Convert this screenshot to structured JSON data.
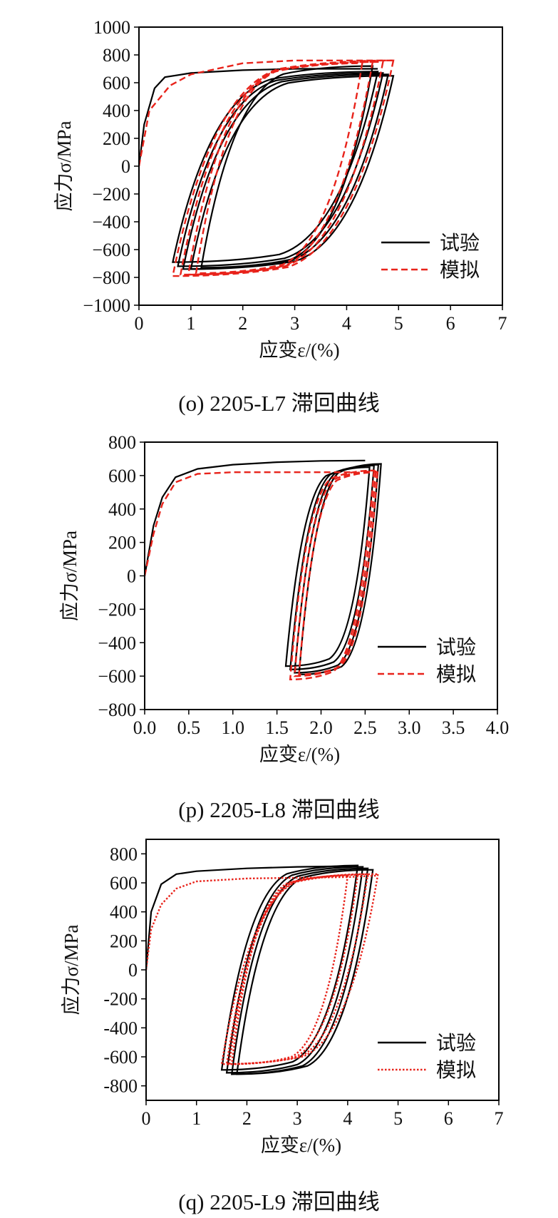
{
  "chart_data": [
    {
      "id": "o",
      "type": "line",
      "caption": "(o) 2205-L7 滞回曲线",
      "xlabel": "应变ε/(%)",
      "ylabel": "应力σ/MPa",
      "xlim": [
        0,
        7
      ],
      "ylim": [
        -1000,
        1000
      ],
      "x_ticks": [
        "0",
        "1",
        "2",
        "3",
        "4",
        "5",
        "6",
        "7"
      ],
      "y_ticks": [
        "1000",
        "800",
        "600",
        "400",
        "200",
        "0",
        "−200",
        "−400",
        "−600",
        "−800",
        "−1000"
      ],
      "x_tick_values": [
        0,
        1,
        2,
        3,
        4,
        5,
        6,
        7
      ],
      "y_tick_values": [
        1000,
        800,
        600,
        400,
        200,
        0,
        -200,
        -400,
        -600,
        -800,
        -1000
      ],
      "grid": false,
      "legend_position": "bottom-right",
      "series": [
        {
          "name": "试验",
          "color": "#000000",
          "style": "solid",
          "initial_loading": [
            [
              0,
              0
            ],
            [
              0.1,
              300
            ],
            [
              0.3,
              560
            ],
            [
              0.5,
              640
            ],
            [
              1.0,
              670
            ],
            [
              2.0,
              690
            ],
            [
              3.0,
              700
            ],
            [
              4.0,
              700
            ],
            [
              4.6,
              700
            ]
          ],
          "loops": [
            {
              "x_max": 4.6,
              "x_min": 0.65,
              "y_max": 680,
              "y_min": -690
            },
            {
              "x_max": 4.7,
              "x_min": 0.75,
              "y_max": 670,
              "y_min": -720
            },
            {
              "x_max": 4.8,
              "x_min": 0.85,
              "y_max": 660,
              "y_min": -740
            },
            {
              "x_max": 4.9,
              "x_min": 1.0,
              "y_max": 650,
              "y_min": -740
            },
            {
              "x_max": 4.5,
              "x_min": 1.2,
              "y_max": 720,
              "y_min": -730
            }
          ]
        },
        {
          "name": "模拟",
          "color": "#e8231b",
          "style": "dashed",
          "initial_loading": [
            [
              0,
              0
            ],
            [
              0.2,
              400
            ],
            [
              0.6,
              580
            ],
            [
              1.0,
              660
            ],
            [
              2.0,
              740
            ],
            [
              3.0,
              760
            ],
            [
              4.2,
              760
            ],
            [
              4.9,
              760
            ]
          ],
          "loops": [
            {
              "x_max": 4.9,
              "x_min": 0.65,
              "y_max": 760,
              "y_min": -790
            },
            {
              "x_max": 4.7,
              "x_min": 0.8,
              "y_max": 750,
              "y_min": -780
            },
            {
              "x_max": 4.5,
              "x_min": 0.95,
              "y_max": 750,
              "y_min": -780
            },
            {
              "x_max": 4.3,
              "x_min": 1.1,
              "y_max": 740,
              "y_min": -770
            }
          ]
        }
      ]
    },
    {
      "id": "p",
      "type": "line",
      "caption": "(p) 2205-L8 滞回曲线",
      "xlabel": "应变ε/(%)",
      "ylabel": "应力σ/MPa",
      "xlim": [
        0,
        4
      ],
      "ylim": [
        -800,
        800
      ],
      "x_ticks": [
        "0.0",
        "0.5",
        "1.0",
        "1.5",
        "2.0",
        "2.5",
        "3.0",
        "3.5",
        "4.0"
      ],
      "y_ticks": [
        "800",
        "600",
        "400",
        "200",
        "0",
        "−200",
        "−400",
        "−600",
        "−800"
      ],
      "x_tick_values": [
        0,
        0.5,
        1.0,
        1.5,
        2.0,
        2.5,
        3.0,
        3.5,
        4.0
      ],
      "y_tick_values": [
        800,
        600,
        400,
        200,
        0,
        -200,
        -400,
        -600,
        -800
      ],
      "grid": false,
      "legend_position": "bottom-right",
      "series": [
        {
          "name": "试验",
          "color": "#000000",
          "style": "solid",
          "initial_loading": [
            [
              0,
              0
            ],
            [
              0.1,
              300
            ],
            [
              0.2,
              470
            ],
            [
              0.35,
              590
            ],
            [
              0.6,
              640
            ],
            [
              1.0,
              665
            ],
            [
              1.5,
              680
            ],
            [
              2.0,
              688
            ],
            [
              2.5,
              690
            ]
          ],
          "loops": [
            {
              "x_max": 2.55,
              "x_min": 1.6,
              "y_max": 650,
              "y_min": -540
            },
            {
              "x_max": 2.6,
              "x_min": 1.65,
              "y_max": 660,
              "y_min": -560
            },
            {
              "x_max": 2.65,
              "x_min": 1.7,
              "y_max": 665,
              "y_min": -580
            },
            {
              "x_max": 2.68,
              "x_min": 1.75,
              "y_max": 670,
              "y_min": -590
            }
          ]
        },
        {
          "name": "模拟",
          "color": "#e8231b",
          "style": "dashed",
          "initial_loading": [
            [
              0,
              0
            ],
            [
              0.1,
              250
            ],
            [
              0.2,
              430
            ],
            [
              0.35,
              560
            ],
            [
              0.6,
              610
            ],
            [
              1.0,
              620
            ],
            [
              2.0,
              620
            ],
            [
              2.4,
              620
            ]
          ],
          "loops": [
            {
              "x_max": 2.6,
              "x_min": 1.65,
              "y_max": 630,
              "y_min": -620
            },
            {
              "x_max": 2.62,
              "x_min": 1.7,
              "y_max": 625,
              "y_min": -600
            },
            {
              "x_max": 2.64,
              "x_min": 1.75,
              "y_max": 620,
              "y_min": -590
            }
          ]
        }
      ]
    },
    {
      "id": "q",
      "type": "line",
      "caption": "(q) 2205-L9 滞回曲线",
      "xlabel": "应变ε/(%)",
      "ylabel": "应力σ/MPa",
      "xlim": [
        0,
        7
      ],
      "ylim": [
        -900,
        900
      ],
      "x_ticks": [
        "0",
        "1",
        "2",
        "3",
        "4",
        "5",
        "6",
        "7"
      ],
      "y_ticks": [
        "800",
        "600",
        "400",
        "200",
        "0",
        "-200",
        "-400",
        "-600",
        "-800"
      ],
      "x_tick_values": [
        0,
        1,
        2,
        3,
        4,
        5,
        6,
        7
      ],
      "y_tick_values": [
        800,
        600,
        400,
        200,
        0,
        -200,
        -400,
        -600,
        -800
      ],
      "grid": false,
      "legend_position": "bottom-right",
      "series": [
        {
          "name": "试验",
          "color": "#000000",
          "style": "solid",
          "initial_loading": [
            [
              0,
              0
            ],
            [
              0.1,
              400
            ],
            [
              0.3,
              590
            ],
            [
              0.6,
              660
            ],
            [
              1.0,
              680
            ],
            [
              2.0,
              700
            ],
            [
              3.0,
              710
            ],
            [
              4.0,
              715
            ]
          ],
          "loops": [
            {
              "x_max": 4.2,
              "x_min": 1.5,
              "y_max": 720,
              "y_min": -690
            },
            {
              "x_max": 4.3,
              "x_min": 1.6,
              "y_max": 710,
              "y_min": -710
            },
            {
              "x_max": 4.4,
              "x_min": 1.7,
              "y_max": 700,
              "y_min": -720
            },
            {
              "x_max": 4.5,
              "x_min": 1.8,
              "y_max": 690,
              "y_min": -720
            }
          ]
        },
        {
          "name": "模拟",
          "color": "#e8231b",
          "style": "dotted",
          "initial_loading": [
            [
              0,
              0
            ],
            [
              0.1,
              280
            ],
            [
              0.3,
              450
            ],
            [
              0.6,
              560
            ],
            [
              1.0,
              610
            ],
            [
              2.0,
              630
            ],
            [
              3.0,
              635
            ],
            [
              4.0,
              640
            ],
            [
              4.6,
              650
            ]
          ],
          "loops": [
            {
              "x_max": 4.6,
              "x_min": 1.5,
              "y_max": 660,
              "y_min": -650
            },
            {
              "x_max": 4.4,
              "x_min": 1.6,
              "y_max": 660,
              "y_min": -650
            },
            {
              "x_max": 4.2,
              "x_min": 1.65,
              "y_max": 655,
              "y_min": -650
            },
            {
              "x_max": 4.0,
              "x_min": 1.7,
              "y_max": 650,
              "y_min": -650
            }
          ]
        }
      ]
    }
  ]
}
